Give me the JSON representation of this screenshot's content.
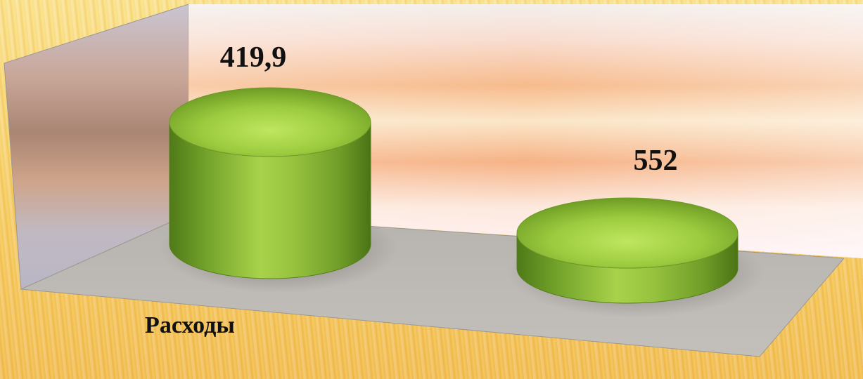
{
  "chart_data": {
    "type": "bar",
    "bar_shape": "cylinder-3d",
    "categories": [
      "Расходы",
      ""
    ],
    "series": [
      {
        "values": [
          419.9,
          552
        ]
      }
    ],
    "data_labels": [
      "419,9",
      "552"
    ],
    "title": "",
    "xlabel": "",
    "ylabel": "",
    "grid": false,
    "legend": "none",
    "colors": {
      "bar_light": "#bde45a",
      "bar_mid": "#86b234",
      "bar_dark": "#4f7a18",
      "floor": "#b6b2ad",
      "back_wall_base": "#f7c9a3",
      "side_wall": "#bfb6ae"
    }
  }
}
